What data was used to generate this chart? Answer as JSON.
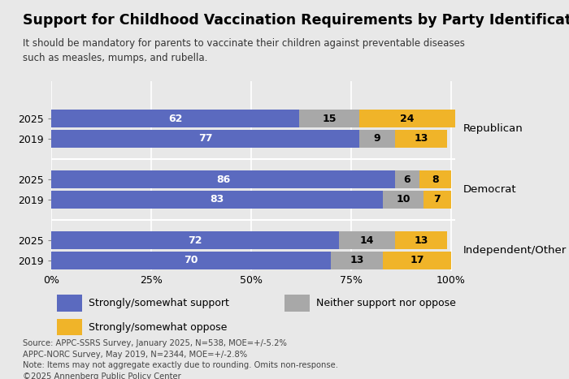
{
  "title": "Support for Childhood Vaccination Requirements by Party Identification",
  "subtitle": "It should be mandatory for parents to vaccinate their children against preventable diseases\nsuch as measles, mumps, and rubella.",
  "groups": [
    {
      "label": "Republican",
      "rows": [
        {
          "year": "2025",
          "support": 62,
          "neither": 15,
          "oppose": 24
        },
        {
          "year": "2019",
          "support": 77,
          "neither": 9,
          "oppose": 13
        }
      ]
    },
    {
      "label": "Democrat",
      "rows": [
        {
          "year": "2025",
          "support": 86,
          "neither": 6,
          "oppose": 8
        },
        {
          "year": "2019",
          "support": 83,
          "neither": 10,
          "oppose": 7
        }
      ]
    },
    {
      "label": "Independent/Other",
      "rows": [
        {
          "year": "2025",
          "support": 72,
          "neither": 14,
          "oppose": 13
        },
        {
          "year": "2019",
          "support": 70,
          "neither": 13,
          "oppose": 17
        }
      ]
    }
  ],
  "colors": {
    "support": "#5b6abf",
    "neither": "#a8a8a8",
    "oppose": "#f0b429"
  },
  "bg_color": "#e8e8e8",
  "footnote": "Source: APPC-SSRS Survey, January 2025, N=538, MOE=+/-5.2%\nAPPC-NORC Survey, May 2019, N=2344, MOE=+/-2.8%\nNote: Items may not aggregate exactly due to rounding. Omits non-response.\n©2025 Annenberg Public Policy Center",
  "legend": [
    {
      "label": "Strongly/somewhat support",
      "color": "#5b6abf"
    },
    {
      "label": "Neither support nor oppose",
      "color": "#a8a8a8"
    },
    {
      "label": "Strongly/somewhat oppose",
      "color": "#f0b429"
    }
  ]
}
